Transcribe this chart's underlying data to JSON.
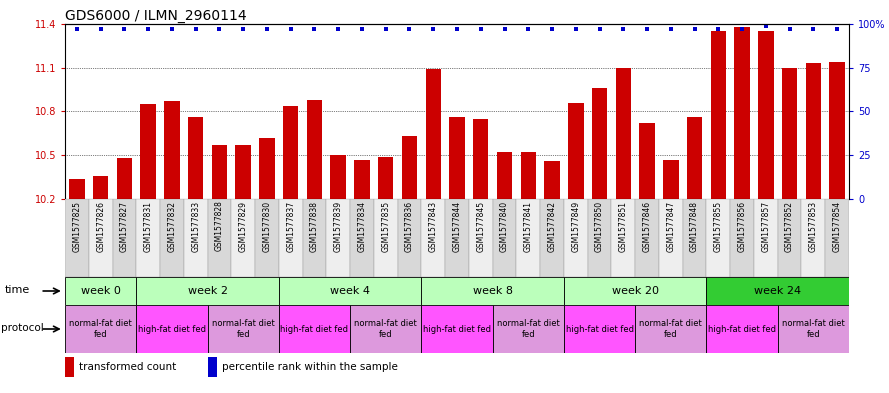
{
  "title": "GDS6000 / ILMN_2960114",
  "samples": [
    "GSM1577825",
    "GSM1577826",
    "GSM1577827",
    "GSM1577831",
    "GSM1577832",
    "GSM1577833",
    "GSM1577828",
    "GSM1577829",
    "GSM1577830",
    "GSM1577837",
    "GSM1577838",
    "GSM1577839",
    "GSM1577834",
    "GSM1577835",
    "GSM1577836",
    "GSM1577843",
    "GSM1577844",
    "GSM1577845",
    "GSM1577840",
    "GSM1577841",
    "GSM1577842",
    "GSM1577849",
    "GSM1577850",
    "GSM1577851",
    "GSM1577846",
    "GSM1577847",
    "GSM1577848",
    "GSM1577855",
    "GSM1577856",
    "GSM1577857",
    "GSM1577852",
    "GSM1577853",
    "GSM1577854"
  ],
  "bar_values": [
    10.34,
    10.36,
    10.48,
    10.85,
    10.87,
    10.76,
    10.57,
    10.57,
    10.62,
    10.84,
    10.88,
    10.5,
    10.47,
    10.49,
    10.63,
    11.09,
    10.76,
    10.75,
    10.52,
    10.52,
    10.46,
    10.86,
    10.96,
    11.1,
    10.72,
    10.47,
    10.76,
    11.35,
    11.38,
    11.35,
    11.1,
    11.13,
    11.14
  ],
  "percentile_values": [
    97,
    97,
    97,
    97,
    97,
    97,
    97,
    97,
    97,
    97,
    97,
    97,
    97,
    97,
    97,
    97,
    97,
    97,
    97,
    97,
    97,
    97,
    97,
    97,
    97,
    97,
    97,
    97,
    97,
    99,
    97,
    97,
    97
  ],
  "ymin": 10.2,
  "ymax": 11.4,
  "yticks": [
    10.2,
    10.5,
    10.8,
    11.1,
    11.4
  ],
  "ytick_labels": [
    "10.2",
    "10.5",
    "10.8",
    "11.1",
    "11.4"
  ],
  "right_ytick_pcts": [
    0,
    25,
    50,
    75,
    100
  ],
  "right_ytick_labels": [
    "0",
    "25",
    "50",
    "75",
    "100%"
  ],
  "bar_color": "#CC0000",
  "dot_color": "#0000CC",
  "time_groups": [
    {
      "label": "week 0",
      "start": 0,
      "end": 3,
      "color": "#bbffbb"
    },
    {
      "label": "week 2",
      "start": 3,
      "end": 9,
      "color": "#bbffbb"
    },
    {
      "label": "week 4",
      "start": 9,
      "end": 15,
      "color": "#bbffbb"
    },
    {
      "label": "week 8",
      "start": 15,
      "end": 21,
      "color": "#bbffbb"
    },
    {
      "label": "week 20",
      "start": 21,
      "end": 27,
      "color": "#bbffbb"
    },
    {
      "label": "week 24",
      "start": 27,
      "end": 33,
      "color": "#33cc33"
    }
  ],
  "protocol_groups": [
    {
      "label": "normal-fat diet\nfed",
      "start": 0,
      "end": 3,
      "color": "#dd99dd"
    },
    {
      "label": "high-fat diet fed",
      "start": 3,
      "end": 6,
      "color": "#ff55ff"
    },
    {
      "label": "normal-fat diet\nfed",
      "start": 6,
      "end": 9,
      "color": "#dd99dd"
    },
    {
      "label": "high-fat diet fed",
      "start": 9,
      "end": 12,
      "color": "#ff55ff"
    },
    {
      "label": "normal-fat diet\nfed",
      "start": 12,
      "end": 15,
      "color": "#dd99dd"
    },
    {
      "label": "high-fat diet fed",
      "start": 15,
      "end": 18,
      "color": "#ff55ff"
    },
    {
      "label": "normal-fat diet\nfed",
      "start": 18,
      "end": 21,
      "color": "#dd99dd"
    },
    {
      "label": "high-fat diet fed",
      "start": 21,
      "end": 24,
      "color": "#ff55ff"
    },
    {
      "label": "normal-fat diet\nfed",
      "start": 24,
      "end": 27,
      "color": "#dd99dd"
    },
    {
      "label": "high-fat diet fed",
      "start": 27,
      "end": 30,
      "color": "#ff55ff"
    },
    {
      "label": "normal-fat diet\nfed",
      "start": 30,
      "end": 33,
      "color": "#dd99dd"
    }
  ],
  "legend_bar_label": "transformed count",
  "legend_dot_label": "percentile rank within the sample",
  "sample_bg_even": "#d8d8d8",
  "sample_bg_odd": "#eeeeee"
}
